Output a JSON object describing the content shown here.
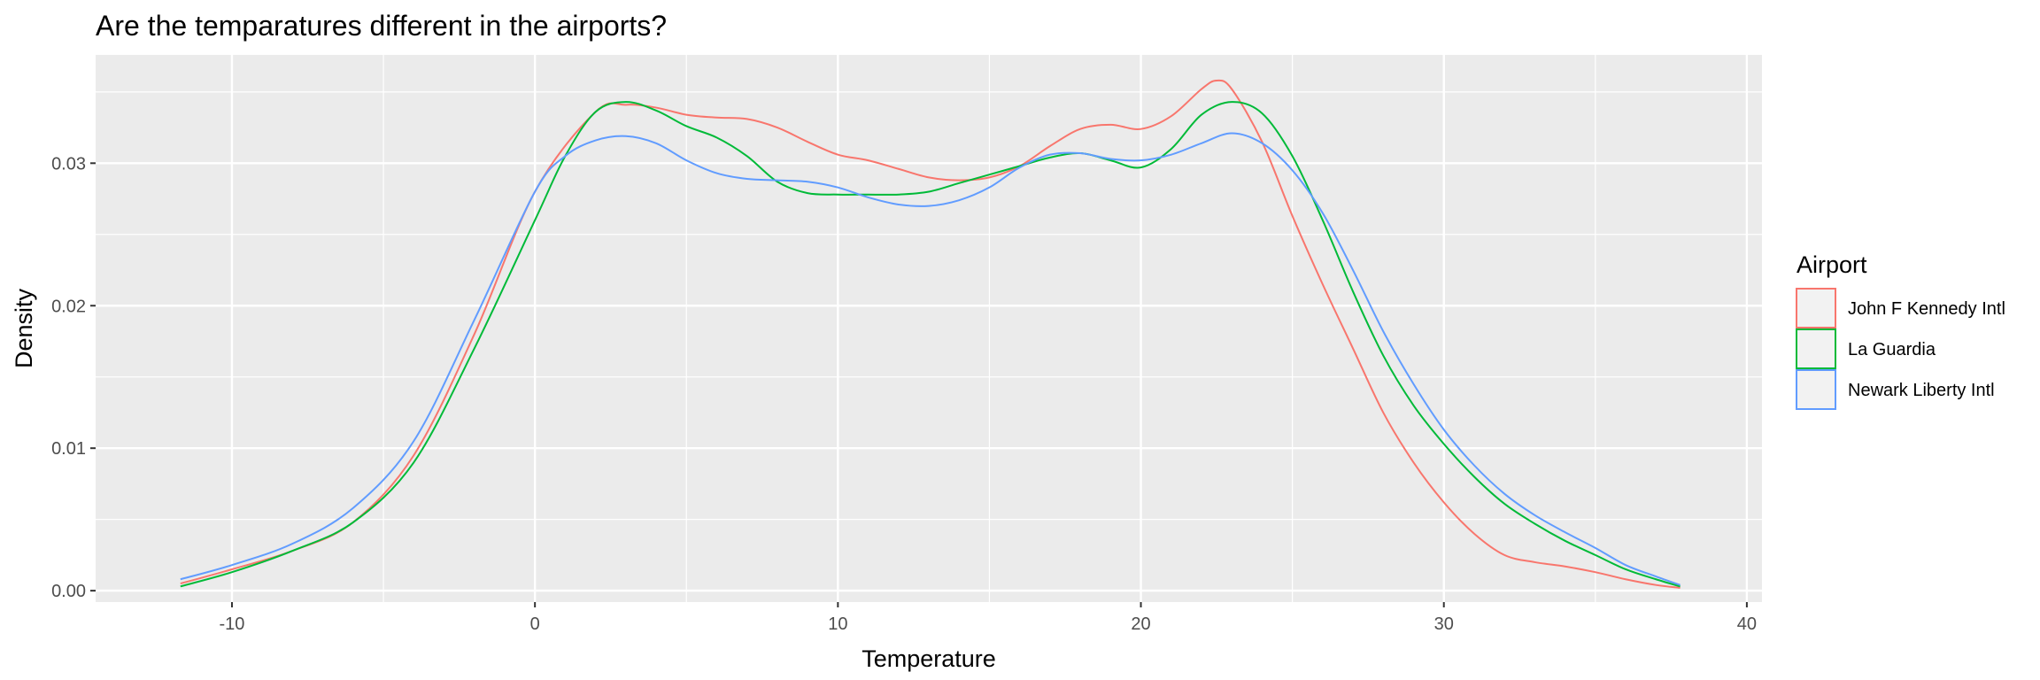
{
  "chart_data": {
    "type": "line",
    "title": "Are the temparatures different in the airports?",
    "xlabel": "Temperature",
    "ylabel": "Density",
    "xlim": [
      -14.5,
      40.5
    ],
    "ylim": [
      -0.0008,
      0.0376
    ],
    "x_ticks": [
      -10,
      0,
      10,
      20,
      30,
      40
    ],
    "x_tick_labels": [
      "-10",
      "0",
      "10",
      "20",
      "30",
      "40"
    ],
    "y_ticks": [
      0.0,
      0.01,
      0.02,
      0.03
    ],
    "y_tick_labels": [
      "0.00",
      "0.01",
      "0.02",
      "0.03"
    ],
    "grid": true,
    "legend": {
      "title": "Airport",
      "placement": "right"
    },
    "series": [
      {
        "name": "John F Kennedy Intl",
        "color": "#F8766D",
        "x": [
          -11.7,
          -10,
          -8,
          -6,
          -4,
          -2,
          0,
          2,
          3,
          4,
          5,
          6,
          7,
          8,
          9,
          10,
          11,
          12,
          13,
          14,
          15,
          16,
          17,
          18,
          19,
          20,
          21,
          22,
          22.5,
          23,
          24,
          25,
          26,
          27,
          28,
          29,
          30,
          31,
          32,
          33,
          34,
          35,
          36,
          37,
          37.8
        ],
        "y": [
          0.0005,
          0.0015,
          0.0028,
          0.0048,
          0.0095,
          0.018,
          0.028,
          0.0336,
          0.0341,
          0.0339,
          0.0334,
          0.0332,
          0.0331,
          0.0325,
          0.0315,
          0.0306,
          0.0302,
          0.0296,
          0.029,
          0.0288,
          0.029,
          0.0298,
          0.0312,
          0.0324,
          0.0327,
          0.0324,
          0.0333,
          0.0352,
          0.0358,
          0.0352,
          0.0315,
          0.0263,
          0.0215,
          0.017,
          0.0125,
          0.009,
          0.0062,
          0.004,
          0.0025,
          0.002,
          0.0017,
          0.0013,
          0.0008,
          0.0004,
          0.0002
        ]
      },
      {
        "name": "La Guardia",
        "color": "#00BA38",
        "x": [
          -11.7,
          -10,
          -8,
          -6,
          -4,
          -2,
          0,
          1,
          2,
          3,
          4,
          5,
          6,
          7,
          8,
          9,
          10,
          11,
          12,
          13,
          14,
          15,
          16,
          17,
          18,
          19,
          20,
          21,
          22,
          23,
          24,
          25,
          26,
          27,
          28,
          29,
          30,
          31,
          32,
          33,
          34,
          35,
          36,
          37,
          37.8
        ],
        "y": [
          0.0003,
          0.0013,
          0.0028,
          0.0048,
          0.009,
          0.017,
          0.026,
          0.0305,
          0.0336,
          0.0343,
          0.0337,
          0.0326,
          0.0318,
          0.0305,
          0.0287,
          0.0279,
          0.0278,
          0.0278,
          0.0278,
          0.028,
          0.0286,
          0.0292,
          0.0298,
          0.0304,
          0.0307,
          0.0302,
          0.0297,
          0.031,
          0.0334,
          0.0343,
          0.0335,
          0.0305,
          0.026,
          0.021,
          0.0165,
          0.013,
          0.0103,
          0.008,
          0.0061,
          0.0047,
          0.0035,
          0.0025,
          0.0015,
          0.0008,
          0.0003
        ]
      },
      {
        "name": "Newark Liberty Intl",
        "color": "#619CFF",
        "x": [
          -11.7,
          -10,
          -8,
          -6,
          -4,
          -2,
          0,
          1,
          2,
          3,
          4,
          5,
          6,
          7,
          8,
          9,
          10,
          11,
          12,
          13,
          14,
          15,
          16,
          17,
          18,
          19,
          20,
          21,
          22,
          23,
          24,
          25,
          26,
          27,
          28,
          29,
          30,
          31,
          32,
          33,
          34,
          35,
          36,
          37,
          37.8
        ],
        "y": [
          0.0008,
          0.0018,
          0.0033,
          0.0058,
          0.0105,
          0.019,
          0.028,
          0.0305,
          0.0316,
          0.0319,
          0.0314,
          0.0302,
          0.0293,
          0.0289,
          0.0288,
          0.0287,
          0.0283,
          0.0276,
          0.0271,
          0.027,
          0.0274,
          0.0283,
          0.0297,
          0.0306,
          0.0307,
          0.0303,
          0.0302,
          0.0306,
          0.0314,
          0.0321,
          0.0314,
          0.0295,
          0.0265,
          0.0225,
          0.0182,
          0.0145,
          0.0113,
          0.0088,
          0.0068,
          0.0053,
          0.0041,
          0.003,
          0.0018,
          0.001,
          0.0004
        ]
      }
    ]
  }
}
